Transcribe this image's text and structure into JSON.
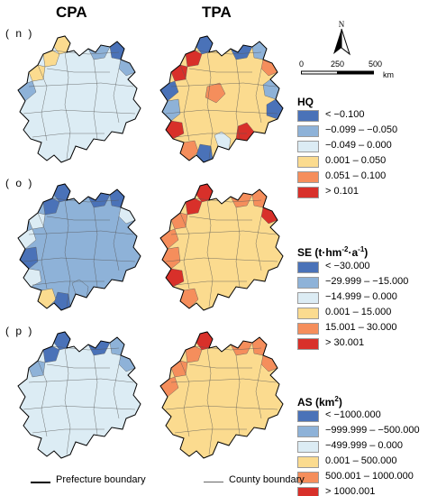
{
  "columns": {
    "left": "CPA",
    "right": "TPA"
  },
  "panels": [
    {
      "label": "( n )",
      "legend_key": "hq"
    },
    {
      "label": "( o )",
      "legend_key": "se"
    },
    {
      "label": "( p )",
      "legend_key": "as"
    }
  ],
  "colors": {
    "c1": "#4a72b8",
    "c2": "#8eb2d8",
    "c3": "#dcecf4",
    "c4": "#fbdb8f",
    "c5": "#f58e5c",
    "c6": "#d8302a",
    "boundary_prefecture": "#000000",
    "boundary_county": "#555555"
  },
  "north_arrow": {
    "letter": "N",
    "icon": "north-arrow-icon"
  },
  "scale_bar": {
    "ticks": [
      "0",
      "250",
      "500"
    ],
    "unit": "km"
  },
  "legends": {
    "hq": {
      "title": "HQ",
      "items": [
        {
          "color": "c1",
          "label": "< −0.100"
        },
        {
          "color": "c2",
          "label": "−0.099 – −0.050"
        },
        {
          "color": "c3",
          "label": "−0.049 – 0.000"
        },
        {
          "color": "c4",
          "label": "0.001 – 0.050"
        },
        {
          "color": "c5",
          "label": "0.051 – 0.100"
        },
        {
          "color": "c6",
          "label": "> 0.101"
        }
      ]
    },
    "se": {
      "title_main": "SE",
      "title_unit_a": "(t·hm",
      "title_unit_sup1": "-2",
      "title_unit_b": "·a",
      "title_unit_sup2": "-1",
      "title_unit_c": ")",
      "items": [
        {
          "color": "c1",
          "label": "< −30.000"
        },
        {
          "color": "c2",
          "label": "−29.999 – −15.000"
        },
        {
          "color": "c3",
          "label": "−14.999 – 0.000"
        },
        {
          "color": "c4",
          "label": "0.001 – 15.000"
        },
        {
          "color": "c5",
          "label": "15.001 – 30.000"
        },
        {
          "color": "c6",
          "label": "> 30.001"
        }
      ]
    },
    "as": {
      "title_main": "AS",
      "title_unit_a": "(km",
      "title_unit_sup": "2",
      "title_unit_c": ")",
      "items": [
        {
          "color": "c1",
          "label": "< −1000.000"
        },
        {
          "color": "c2",
          "label": "−999.999 – −500.000"
        },
        {
          "color": "c3",
          "label": "−499.999 – 0.000"
        },
        {
          "color": "c4",
          "label": "0.001 – 500.000"
        },
        {
          "color": "c5",
          "label": "500.001 – 1000.000"
        },
        {
          "color": "c6",
          "label": "> 1000.001"
        }
      ]
    }
  },
  "boundary_legend": {
    "prefecture": "Prefecture boundary",
    "county": "County boundary"
  },
  "map_patterns": {
    "n_cpa": {
      "base": "c3",
      "patches": [
        "c4",
        "c4",
        "c2",
        "c1",
        "c2",
        "c4",
        "c2"
      ]
    },
    "n_tpa": {
      "base": "c4",
      "patches": [
        "c1",
        "c6",
        "c1",
        "c2",
        "c5",
        "c6",
        "c1",
        "c2",
        "c6",
        "c5",
        "c1",
        "c3",
        "c6",
        "c2",
        "c1",
        "c5"
      ]
    },
    "o_cpa": {
      "base": "c2",
      "patches": [
        "c1",
        "c1",
        "c1",
        "c1",
        "c3",
        "c3",
        "c3",
        "c1",
        "c3",
        "c4",
        "c1",
        "c2"
      ]
    },
    "o_tpa": {
      "base": "c4",
      "patches": [
        "c6",
        "c6",
        "c5",
        "c5",
        "c6",
        "c5",
        "c5",
        "c5",
        "c6",
        "c5"
      ]
    },
    "p_cpa": {
      "base": "c3",
      "patches": [
        "c1",
        "c1",
        "c1",
        "c2",
        "c2",
        "c2"
      ]
    },
    "p_tpa": {
      "base": "c4",
      "patches": [
        "c6",
        "c5",
        "c5",
        "c5",
        "c5",
        "c5",
        "c5"
      ]
    }
  }
}
